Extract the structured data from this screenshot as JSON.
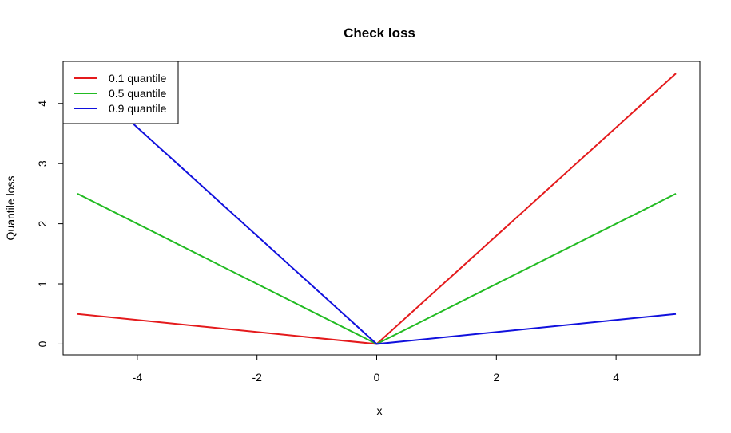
{
  "chart_data": {
    "type": "line",
    "title": "Check loss",
    "xlabel": "x",
    "ylabel": "Quantile loss",
    "xlim": [
      -5.24,
      5.4
    ],
    "ylim": [
      -0.18,
      4.7
    ],
    "xticks": [
      -4,
      -2,
      0,
      2,
      4
    ],
    "yticks": [
      0,
      1,
      2,
      3,
      4
    ],
    "xtick_labels": [
      "-4",
      "-2",
      "0",
      "2",
      "4"
    ],
    "ytick_labels": [
      "0",
      "1",
      "2",
      "3",
      "4"
    ],
    "grid": false,
    "legend_position": "top-left",
    "series": [
      {
        "name": "0.1 quantile",
        "color": "#e41a1c",
        "x": [
          -5,
          0,
          5
        ],
        "y": [
          0.5,
          0,
          4.5
        ]
      },
      {
        "name": "0.5 quantile",
        "color": "#22bb22",
        "x": [
          -5,
          0,
          5
        ],
        "y": [
          2.5,
          0,
          2.5
        ]
      },
      {
        "name": "0.9 quantile",
        "color": "#1010dd",
        "x": [
          -5,
          0,
          5
        ],
        "y": [
          4.5,
          0,
          0.5
        ]
      }
    ]
  }
}
